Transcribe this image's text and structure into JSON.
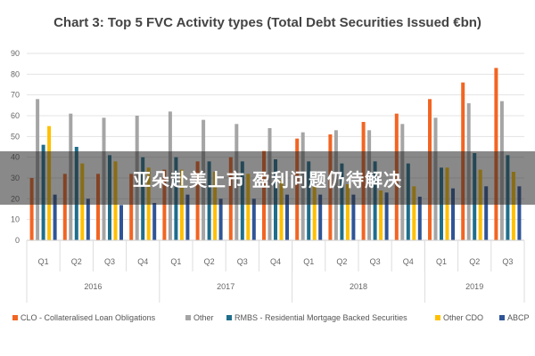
{
  "chart_data": {
    "type": "bar",
    "title": "Chart 3: Top 5 FVC Activity types (Total Debt Securities Issued €bn)",
    "xlabel": "",
    "ylabel": "",
    "ylim": [
      0,
      90
    ],
    "yticks": [
      0,
      10,
      20,
      30,
      40,
      50,
      60,
      70,
      80,
      90
    ],
    "grid": true,
    "legend_position": "bottom",
    "categories": [
      "Q1",
      "Q2",
      "Q3",
      "Q4",
      "Q1",
      "Q2",
      "Q3",
      "Q4",
      "Q1",
      "Q2",
      "Q3",
      "Q4",
      "Q1",
      "Q2",
      "Q3"
    ],
    "years": [
      {
        "label": "2016",
        "count": 4
      },
      {
        "label": "2017",
        "count": 4
      },
      {
        "label": "2018",
        "count": 4
      },
      {
        "label": "2019",
        "count": 3
      }
    ],
    "series": [
      {
        "name": "CLO - Collateralised Loan Obligations",
        "color": "#f26522",
        "values": [
          30,
          32,
          32,
          32,
          34,
          38,
          40,
          43,
          49,
          51,
          57,
          61,
          68,
          76,
          83
        ]
      },
      {
        "name": "Other",
        "color": "#a5a5a5",
        "values": [
          68,
          61,
          59,
          60,
          62,
          58,
          56,
          54,
          52,
          53,
          53,
          56,
          59,
          66,
          67
        ]
      },
      {
        "name": "RMBS - Residential Mortgage Backed Securities",
        "color": "#1f6e8c",
        "values": [
          46,
          45,
          41,
          40,
          40,
          38,
          38,
          39,
          38,
          37,
          38,
          37,
          35,
          42,
          41
        ]
      },
      {
        "name": "Other CDO",
        "color": "#ffc000",
        "values": [
          55,
          37,
          38,
          35,
          34,
          33,
          32,
          29,
          26,
          27,
          24,
          26,
          35,
          34,
          33
        ]
      },
      {
        "name": "ABCP",
        "color": "#2f5597",
        "values": [
          22,
          20,
          17,
          18,
          22,
          20,
          20,
          22,
          22,
          22,
          23,
          21,
          25,
          26,
          26
        ]
      }
    ]
  },
  "overlay_text": "亚朵赴美上市 盈利问题仍待解决"
}
